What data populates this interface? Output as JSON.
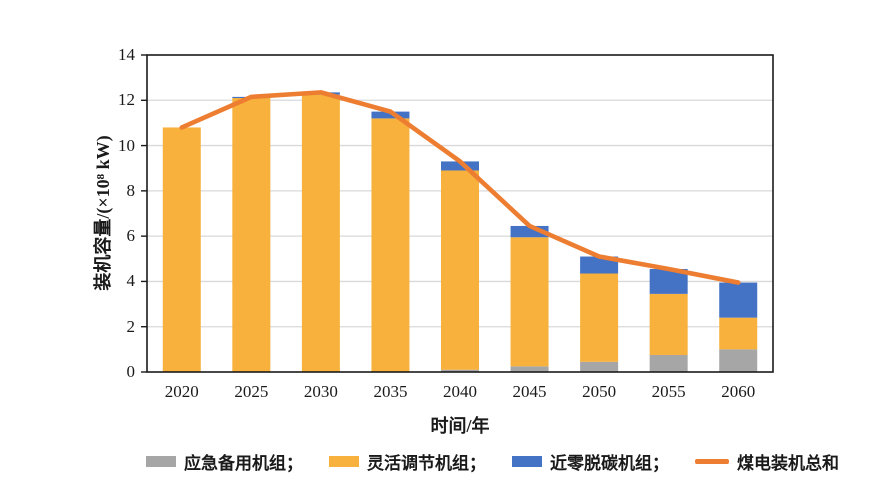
{
  "chart_data": {
    "type": "bar",
    "stacked": true,
    "title": "",
    "categories": [
      "2020",
      "2025",
      "2030",
      "2035",
      "2040",
      "2045",
      "2050",
      "2055",
      "2060"
    ],
    "series": [
      {
        "name": "应急备用机组",
        "color": "#A6A6A6",
        "values": [
          0,
          0,
          0,
          0,
          0.1,
          0.25,
          0.45,
          0.75,
          1.0
        ]
      },
      {
        "name": "灵活调节机组",
        "color": "#F7B13C",
        "values": [
          10.8,
          12.1,
          12.25,
          11.2,
          8.8,
          5.7,
          3.9,
          2.7,
          1.4
        ]
      },
      {
        "name": "近零脱碳机组",
        "color": "#4472C4",
        "values": [
          0,
          0.05,
          0.1,
          0.3,
          0.4,
          0.5,
          0.75,
          1.1,
          1.55
        ]
      }
    ],
    "line_series": {
      "name": "煤电装机总和",
      "color": "#ED7D31",
      "values": [
        10.8,
        12.15,
        12.35,
        11.5,
        9.3,
        6.45,
        5.1,
        4.55,
        3.95
      ]
    },
    "xlabel": "时间/年",
    "ylabel": "装机容量/(×10⁸ kW)",
    "ylim": [
      0,
      14
    ],
    "yticks": [
      0,
      2,
      4,
      6,
      8,
      10,
      12,
      14
    ],
    "grid": "horizontal",
    "gridline_color": "#D9D9D9",
    "spine_color": "#1a1a1a",
    "background": "#FFFFFF",
    "legend_position": "bottom",
    "legend_items": [
      {
        "label": "应急备用机组；",
        "swatch": "rect",
        "color": "#A6A6A6"
      },
      {
        "label": "灵活调节机组；",
        "swatch": "rect",
        "color": "#F7B13C"
      },
      {
        "label": "近零脱碳机组；",
        "swatch": "rect",
        "color": "#4472C4"
      },
      {
        "label": "煤电装机总和",
        "swatch": "line",
        "color": "#ED7D31"
      }
    ]
  }
}
